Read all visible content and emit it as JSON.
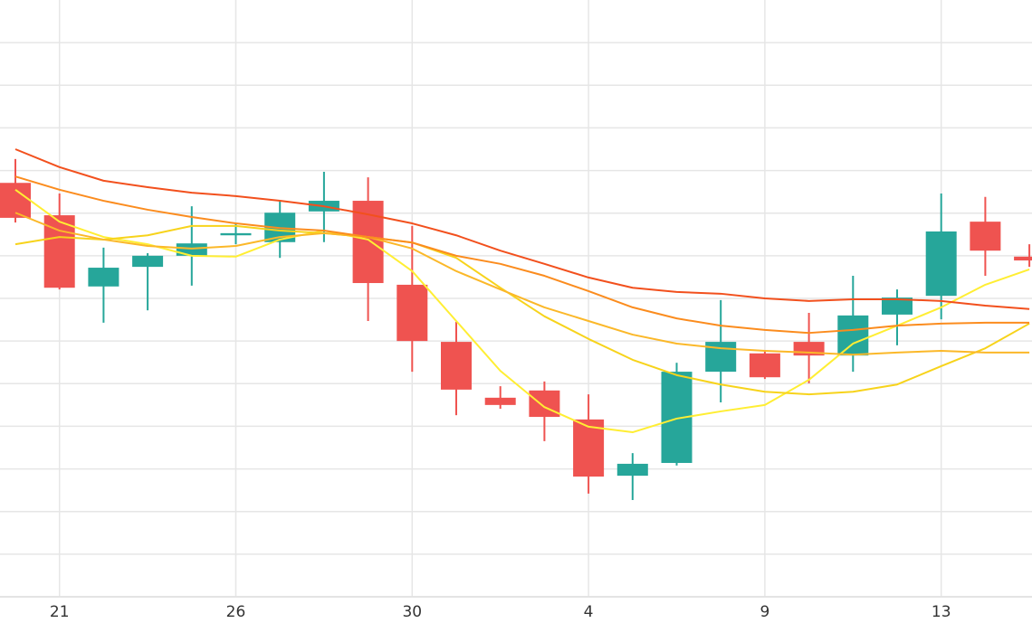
{
  "chart_data": {
    "type": "candlestick",
    "categories": [
      null,
      "21",
      null,
      null,
      null,
      "26",
      null,
      null,
      null,
      "30",
      null,
      null,
      null,
      "4",
      null,
      null,
      null,
      "9",
      null,
      null,
      null,
      "13",
      null,
      null
    ],
    "open": [
      9.71,
      8.95,
      7.28,
      7.74,
      8.0,
      8.48,
      8.32,
      9.04,
      9.29,
      7.32,
      5.98,
      4.67,
      4.84,
      4.16,
      2.84,
      3.14,
      5.28,
      5.71,
      5.98,
      5.66,
      6.62,
      7.06,
      8.8,
      7.98
    ],
    "high": [
      10.27,
      9.46,
      8.19,
      8.06,
      9.16,
      8.76,
      9.29,
      9.97,
      9.84,
      8.7,
      6.45,
      4.94,
      5.05,
      4.75,
      3.37,
      5.49,
      6.96,
      5.79,
      6.66,
      7.53,
      7.21,
      9.46,
      9.38,
      8.27
    ],
    "low": [
      8.78,
      7.21,
      6.43,
      6.72,
      7.3,
      8.27,
      7.95,
      8.32,
      6.47,
      5.28,
      4.26,
      4.41,
      3.65,
      2.42,
      2.27,
      3.08,
      4.56,
      5.11,
      5.01,
      5.28,
      5.9,
      6.51,
      7.53,
      7.74
    ],
    "close": [
      8.89,
      7.25,
      7.72,
      8.0,
      8.29,
      8.53,
      9.01,
      9.29,
      7.36,
      6.0,
      4.86,
      4.5,
      4.22,
      2.82,
      3.12,
      5.28,
      5.98,
      5.15,
      5.66,
      6.6,
      7.02,
      8.57,
      8.12,
      7.89
    ],
    "up_color": "#26a69a",
    "down_color": "#ef5350",
    "series": [
      {
        "color": "#ffee33",
        "values": [
          9.55,
          8.8,
          8.44,
          8.27,
          8.0,
          7.98,
          8.38,
          8.59,
          8.38,
          7.64,
          6.47,
          5.3,
          4.45,
          3.99,
          3.86,
          4.18,
          4.35,
          4.5,
          5.09,
          5.94,
          6.36,
          6.79,
          7.32,
          7.68
        ]
      },
      {
        "color": "#f7d31b",
        "values": [
          8.27,
          8.44,
          8.38,
          8.48,
          8.7,
          8.7,
          8.59,
          8.53,
          8.44,
          8.31,
          7.95,
          7.25,
          6.58,
          6.05,
          5.56,
          5.2,
          4.98,
          4.81,
          4.75,
          4.81,
          4.98,
          5.41,
          5.83,
          6.41
        ]
      },
      {
        "color": "#fbb829",
        "values": [
          9.01,
          8.59,
          8.38,
          8.23,
          8.17,
          8.23,
          8.44,
          8.53,
          8.44,
          8.17,
          7.64,
          7.21,
          6.79,
          6.47,
          6.15,
          5.94,
          5.83,
          5.77,
          5.73,
          5.68,
          5.73,
          5.77,
          5.73,
          5.73
        ]
      },
      {
        "color": "#fb8c1e",
        "values": [
          9.86,
          9.55,
          9.29,
          9.08,
          8.91,
          8.76,
          8.65,
          8.59,
          8.44,
          8.31,
          8.0,
          7.81,
          7.53,
          7.17,
          6.79,
          6.53,
          6.36,
          6.26,
          6.19,
          6.26,
          6.36,
          6.41,
          6.43,
          6.43
        ]
      },
      {
        "color": "#f2501d",
        "values": [
          10.5,
          10.08,
          9.76,
          9.61,
          9.48,
          9.4,
          9.29,
          9.16,
          8.97,
          8.76,
          8.48,
          8.12,
          7.81,
          7.49,
          7.25,
          7.15,
          7.11,
          7.0,
          6.94,
          6.98,
          6.98,
          6.94,
          6.83,
          6.75
        ]
      }
    ],
    "ylim": [
      0,
      14
    ],
    "yticks": [
      0,
      1,
      2,
      3,
      4,
      5,
      6,
      7,
      8,
      9,
      10,
      11,
      12,
      13
    ],
    "show_ytick_labels": false,
    "grid": true
  }
}
